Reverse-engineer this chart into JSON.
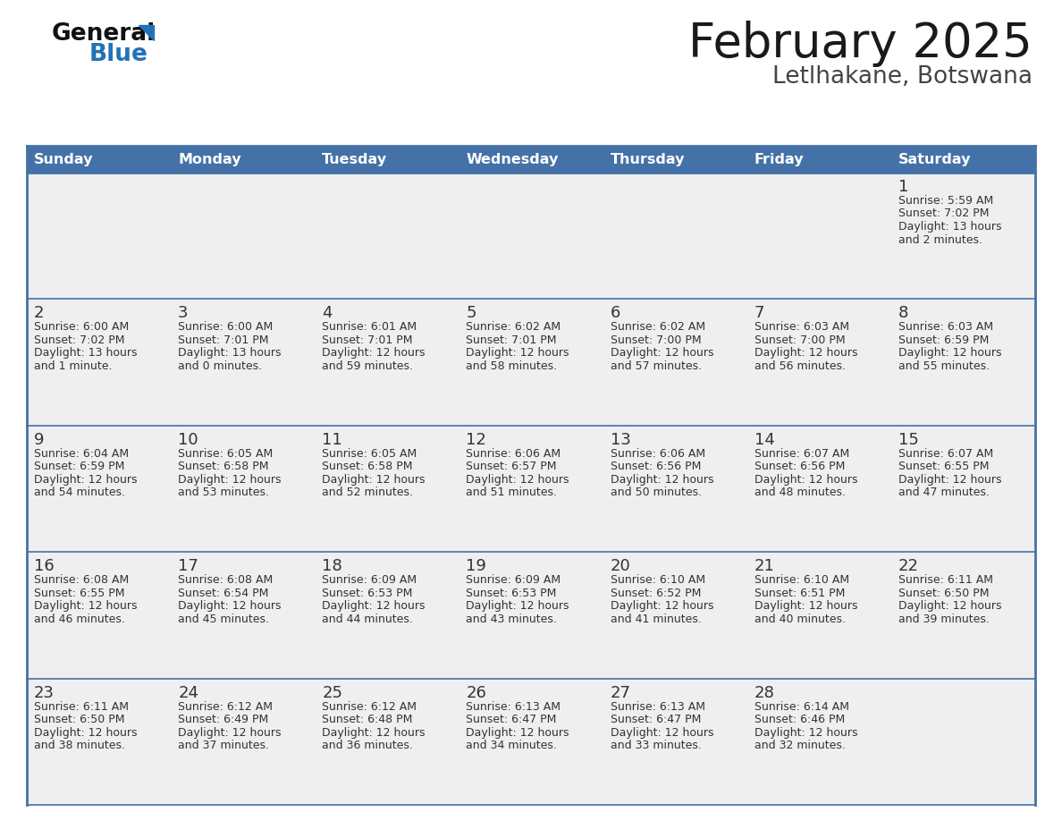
{
  "title": "February 2025",
  "subtitle": "Letlhakane, Botswana",
  "days_of_week": [
    "Sunday",
    "Monday",
    "Tuesday",
    "Wednesday",
    "Thursday",
    "Friday",
    "Saturday"
  ],
  "header_bg_color": "#4472A8",
  "header_text_color": "#FFFFFF",
  "cell_bg_color": "#EFEFEF",
  "border_color": "#4472A8",
  "day_number_color": "#333333",
  "text_color": "#333333",
  "title_color": "#1a1a1a",
  "subtitle_color": "#444444",
  "page_bg": "#FFFFFF",
  "calendar_data": [
    [
      {
        "day": null,
        "sunrise": null,
        "sunset": null,
        "daylight_line1": null,
        "daylight_line2": null
      },
      {
        "day": null,
        "sunrise": null,
        "sunset": null,
        "daylight_line1": null,
        "daylight_line2": null
      },
      {
        "day": null,
        "sunrise": null,
        "sunset": null,
        "daylight_line1": null,
        "daylight_line2": null
      },
      {
        "day": null,
        "sunrise": null,
        "sunset": null,
        "daylight_line1": null,
        "daylight_line2": null
      },
      {
        "day": null,
        "sunrise": null,
        "sunset": null,
        "daylight_line1": null,
        "daylight_line2": null
      },
      {
        "day": null,
        "sunrise": null,
        "sunset": null,
        "daylight_line1": null,
        "daylight_line2": null
      },
      {
        "day": 1,
        "sunrise": "5:59 AM",
        "sunset": "7:02 PM",
        "daylight_line1": "Daylight: 13 hours",
        "daylight_line2": "and 2 minutes."
      }
    ],
    [
      {
        "day": 2,
        "sunrise": "6:00 AM",
        "sunset": "7:02 PM",
        "daylight_line1": "Daylight: 13 hours",
        "daylight_line2": "and 1 minute."
      },
      {
        "day": 3,
        "sunrise": "6:00 AM",
        "sunset": "7:01 PM",
        "daylight_line1": "Daylight: 13 hours",
        "daylight_line2": "and 0 minutes."
      },
      {
        "day": 4,
        "sunrise": "6:01 AM",
        "sunset": "7:01 PM",
        "daylight_line1": "Daylight: 12 hours",
        "daylight_line2": "and 59 minutes."
      },
      {
        "day": 5,
        "sunrise": "6:02 AM",
        "sunset": "7:01 PM",
        "daylight_line1": "Daylight: 12 hours",
        "daylight_line2": "and 58 minutes."
      },
      {
        "day": 6,
        "sunrise": "6:02 AM",
        "sunset": "7:00 PM",
        "daylight_line1": "Daylight: 12 hours",
        "daylight_line2": "and 57 minutes."
      },
      {
        "day": 7,
        "sunrise": "6:03 AM",
        "sunset": "7:00 PM",
        "daylight_line1": "Daylight: 12 hours",
        "daylight_line2": "and 56 minutes."
      },
      {
        "day": 8,
        "sunrise": "6:03 AM",
        "sunset": "6:59 PM",
        "daylight_line1": "Daylight: 12 hours",
        "daylight_line2": "and 55 minutes."
      }
    ],
    [
      {
        "day": 9,
        "sunrise": "6:04 AM",
        "sunset": "6:59 PM",
        "daylight_line1": "Daylight: 12 hours",
        "daylight_line2": "and 54 minutes."
      },
      {
        "day": 10,
        "sunrise": "6:05 AM",
        "sunset": "6:58 PM",
        "daylight_line1": "Daylight: 12 hours",
        "daylight_line2": "and 53 minutes."
      },
      {
        "day": 11,
        "sunrise": "6:05 AM",
        "sunset": "6:58 PM",
        "daylight_line1": "Daylight: 12 hours",
        "daylight_line2": "and 52 minutes."
      },
      {
        "day": 12,
        "sunrise": "6:06 AM",
        "sunset": "6:57 PM",
        "daylight_line1": "Daylight: 12 hours",
        "daylight_line2": "and 51 minutes."
      },
      {
        "day": 13,
        "sunrise": "6:06 AM",
        "sunset": "6:56 PM",
        "daylight_line1": "Daylight: 12 hours",
        "daylight_line2": "and 50 minutes."
      },
      {
        "day": 14,
        "sunrise": "6:07 AM",
        "sunset": "6:56 PM",
        "daylight_line1": "Daylight: 12 hours",
        "daylight_line2": "and 48 minutes."
      },
      {
        "day": 15,
        "sunrise": "6:07 AM",
        "sunset": "6:55 PM",
        "daylight_line1": "Daylight: 12 hours",
        "daylight_line2": "and 47 minutes."
      }
    ],
    [
      {
        "day": 16,
        "sunrise": "6:08 AM",
        "sunset": "6:55 PM",
        "daylight_line1": "Daylight: 12 hours",
        "daylight_line2": "and 46 minutes."
      },
      {
        "day": 17,
        "sunrise": "6:08 AM",
        "sunset": "6:54 PM",
        "daylight_line1": "Daylight: 12 hours",
        "daylight_line2": "and 45 minutes."
      },
      {
        "day": 18,
        "sunrise": "6:09 AM",
        "sunset": "6:53 PM",
        "daylight_line1": "Daylight: 12 hours",
        "daylight_line2": "and 44 minutes."
      },
      {
        "day": 19,
        "sunrise": "6:09 AM",
        "sunset": "6:53 PM",
        "daylight_line1": "Daylight: 12 hours",
        "daylight_line2": "and 43 minutes."
      },
      {
        "day": 20,
        "sunrise": "6:10 AM",
        "sunset": "6:52 PM",
        "daylight_line1": "Daylight: 12 hours",
        "daylight_line2": "and 41 minutes."
      },
      {
        "day": 21,
        "sunrise": "6:10 AM",
        "sunset": "6:51 PM",
        "daylight_line1": "Daylight: 12 hours",
        "daylight_line2": "and 40 minutes."
      },
      {
        "day": 22,
        "sunrise": "6:11 AM",
        "sunset": "6:50 PM",
        "daylight_line1": "Daylight: 12 hours",
        "daylight_line2": "and 39 minutes."
      }
    ],
    [
      {
        "day": 23,
        "sunrise": "6:11 AM",
        "sunset": "6:50 PM",
        "daylight_line1": "Daylight: 12 hours",
        "daylight_line2": "and 38 minutes."
      },
      {
        "day": 24,
        "sunrise": "6:12 AM",
        "sunset": "6:49 PM",
        "daylight_line1": "Daylight: 12 hours",
        "daylight_line2": "and 37 minutes."
      },
      {
        "day": 25,
        "sunrise": "6:12 AM",
        "sunset": "6:48 PM",
        "daylight_line1": "Daylight: 12 hours",
        "daylight_line2": "and 36 minutes."
      },
      {
        "day": 26,
        "sunrise": "6:13 AM",
        "sunset": "6:47 PM",
        "daylight_line1": "Daylight: 12 hours",
        "daylight_line2": "and 34 minutes."
      },
      {
        "day": 27,
        "sunrise": "6:13 AM",
        "sunset": "6:47 PM",
        "daylight_line1": "Daylight: 12 hours",
        "daylight_line2": "and 33 minutes."
      },
      {
        "day": 28,
        "sunrise": "6:14 AM",
        "sunset": "6:46 PM",
        "daylight_line1": "Daylight: 12 hours",
        "daylight_line2": "and 32 minutes."
      },
      {
        "day": null,
        "sunrise": null,
        "sunset": null,
        "daylight_line1": null,
        "daylight_line2": null
      }
    ]
  ]
}
